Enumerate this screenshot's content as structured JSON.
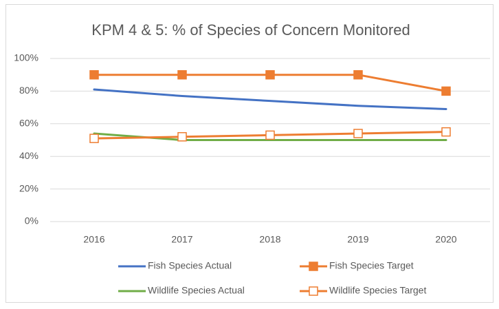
{
  "chart_data": {
    "type": "line",
    "title": "KPM 4 & 5: % of Species of Concern Monitored",
    "categories": [
      "2016",
      "2017",
      "2018",
      "2019",
      "2020"
    ],
    "series": [
      {
        "name": "Fish Species Actual",
        "color": "#4472c4",
        "marker": "none",
        "values": [
          81,
          77,
          74,
          71,
          69
        ]
      },
      {
        "name": "Fish Species Target",
        "color": "#ed7d31",
        "marker": "square",
        "values": [
          90,
          90,
          90,
          90,
          80
        ]
      },
      {
        "name": "Wildlife Species Actual",
        "color": "#70ad47",
        "marker": "none",
        "values": [
          54,
          50,
          50,
          50,
          50
        ]
      },
      {
        "name": "Wildlife Species Target",
        "color": "#ed7d31",
        "marker": "square-open",
        "values": [
          51,
          52,
          53,
          54,
          55
        ]
      }
    ],
    "ylim": [
      0,
      100
    ],
    "yticks": [
      {
        "value": 0,
        "label": "0%"
      },
      {
        "value": 20,
        "label": "20%"
      },
      {
        "value": 40,
        "label": "40%"
      },
      {
        "value": 60,
        "label": "60%"
      },
      {
        "value": 80,
        "label": "80%"
      },
      {
        "value": 100,
        "label": "100%"
      }
    ],
    "grid": true,
    "legend": "bottom"
  }
}
